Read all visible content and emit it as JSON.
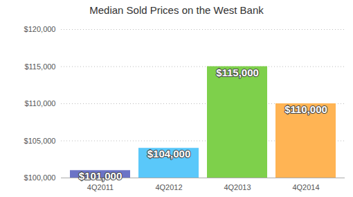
{
  "chart_data": {
    "type": "bar",
    "title": "Median Sold Prices on the West Bank",
    "categories": [
      "4Q2011",
      "4Q2012",
      "4Q2013",
      "4Q2014"
    ],
    "values": [
      101000,
      104000,
      115000,
      110000
    ],
    "value_labels": [
      "$101,000",
      "$104,000",
      "$115,000",
      "$110,000"
    ],
    "colors": [
      "#6b73c6",
      "#5ac8fa",
      "#7ed04b",
      "#ffb454"
    ],
    "ylim": [
      100000,
      120000
    ],
    "yticks": [
      {
        "value": 100000,
        "label": "$100,000"
      },
      {
        "value": 105000,
        "label": "$105,000"
      },
      {
        "value": 110000,
        "label": "$110,000"
      },
      {
        "value": 115000,
        "label": "$115,000"
      },
      {
        "value": 120000,
        "label": "$120,000"
      }
    ],
    "grid": true,
    "data_labels": true
  }
}
